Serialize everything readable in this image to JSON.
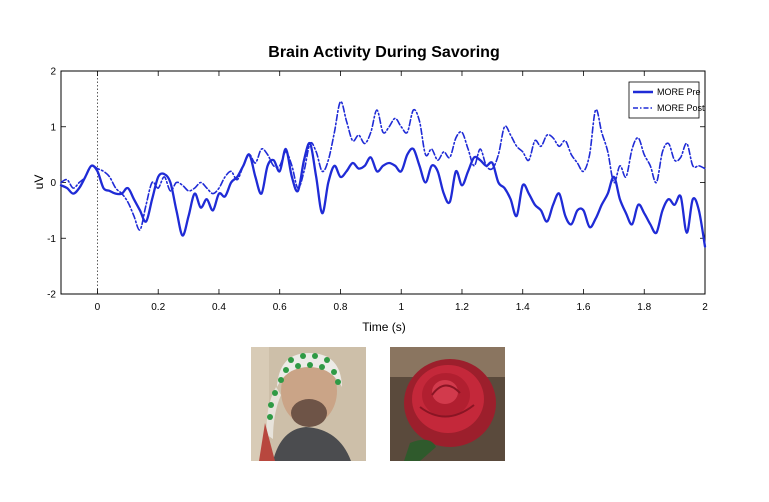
{
  "chart_data": {
    "type": "line",
    "title": "Brain Activity During Savoring",
    "xlabel": "Time (s)",
    "ylabel": "uV",
    "xlim": [
      -0.12,
      2.0
    ],
    "ylim": [
      -2,
      2
    ],
    "xticks": [
      "0",
      "0.2",
      "0.4",
      "0.6",
      "0.8",
      "1",
      "1.2",
      "1.4",
      "1.6",
      "1.8",
      "2"
    ],
    "yticks": [
      "2",
      "1",
      "0",
      "-1",
      "-2"
    ],
    "legend_position": "top-right",
    "stimulus_onset": 0,
    "grid": false,
    "color": "#1f2bd6",
    "x": [
      -0.12,
      -0.1,
      -0.08,
      -0.06,
      -0.04,
      -0.02,
      0.0,
      0.02,
      0.04,
      0.06,
      0.08,
      0.1,
      0.12,
      0.14,
      0.16,
      0.18,
      0.2,
      0.22,
      0.24,
      0.26,
      0.28,
      0.3,
      0.32,
      0.34,
      0.36,
      0.38,
      0.4,
      0.42,
      0.44,
      0.46,
      0.48,
      0.5,
      0.52,
      0.54,
      0.56,
      0.58,
      0.6,
      0.62,
      0.64,
      0.66,
      0.68,
      0.7,
      0.72,
      0.74,
      0.76,
      0.78,
      0.8,
      0.82,
      0.84,
      0.86,
      0.88,
      0.9,
      0.92,
      0.94,
      0.96,
      0.98,
      1.0,
      1.02,
      1.04,
      1.06,
      1.08,
      1.1,
      1.12,
      1.14,
      1.16,
      1.18,
      1.2,
      1.22,
      1.24,
      1.26,
      1.28,
      1.3,
      1.32,
      1.34,
      1.36,
      1.38,
      1.4,
      1.42,
      1.44,
      1.46,
      1.48,
      1.5,
      1.52,
      1.54,
      1.56,
      1.58,
      1.6,
      1.62,
      1.64,
      1.66,
      1.68,
      1.7,
      1.72,
      1.74,
      1.76,
      1.78,
      1.8,
      1.82,
      1.84,
      1.86,
      1.88,
      1.9,
      1.92,
      1.94,
      1.96,
      1.98,
      2.0
    ],
    "series": [
      {
        "name": "MORE Pre",
        "style": "solid",
        "values": [
          -0.05,
          -0.1,
          -0.2,
          -0.1,
          0.1,
          0.3,
          0.2,
          -0.1,
          -0.15,
          -0.2,
          -0.2,
          -0.1,
          -0.3,
          -0.5,
          -0.7,
          -0.3,
          0.1,
          0.15,
          0.0,
          -0.5,
          -0.95,
          -0.6,
          -0.2,
          -0.45,
          -0.3,
          -0.5,
          -0.2,
          -0.25,
          0.0,
          0.1,
          0.3,
          0.5,
          0.1,
          -0.2,
          0.3,
          0.4,
          0.2,
          0.6,
          0.1,
          -0.15,
          0.4,
          0.7,
          0.1,
          -0.55,
          0.0,
          0.3,
          0.1,
          0.2,
          0.35,
          0.25,
          0.3,
          0.45,
          0.2,
          0.3,
          0.35,
          0.3,
          0.2,
          0.5,
          0.6,
          0.3,
          0.0,
          0.3,
          0.2,
          -0.2,
          -0.35,
          0.2,
          -0.05,
          0.2,
          0.45,
          0.4,
          0.3,
          0.35,
          0.0,
          -0.1,
          -0.3,
          -0.6,
          -0.05,
          -0.2,
          -0.4,
          -0.5,
          -0.7,
          -0.4,
          -0.2,
          -0.6,
          -0.75,
          -0.5,
          -0.5,
          -0.8,
          -0.65,
          -0.4,
          -0.2,
          0.1,
          -0.3,
          -0.55,
          -0.75,
          -0.4,
          -0.55,
          -0.75,
          -0.9,
          -0.5,
          -0.3,
          -0.4,
          -0.25,
          -0.9,
          -0.3,
          -0.5,
          -1.15
        ]
      },
      {
        "name": "MORE Post",
        "style": "dashdot",
        "values": [
          0.0,
          0.05,
          -0.1,
          0.0,
          0.1,
          0.3,
          0.25,
          0.2,
          0.1,
          -0.1,
          -0.2,
          -0.35,
          -0.6,
          -0.85,
          -0.4,
          0.0,
          -0.1,
          0.1,
          -0.15,
          0.0,
          -0.05,
          -0.15,
          -0.1,
          0.0,
          -0.1,
          -0.2,
          -0.1,
          0.1,
          0.2,
          0.05,
          0.3,
          0.5,
          0.35,
          0.6,
          0.5,
          0.3,
          0.3,
          0.55,
          0.3,
          -0.1,
          0.2,
          0.7,
          0.55,
          0.2,
          0.4,
          0.9,
          1.45,
          1.1,
          0.75,
          0.85,
          0.7,
          0.9,
          1.3,
          0.9,
          1.0,
          1.15,
          1.0,
          0.9,
          1.3,
          1.1,
          0.5,
          0.6,
          0.4,
          0.55,
          0.45,
          0.8,
          0.9,
          0.6,
          0.3,
          0.6,
          0.3,
          0.25,
          0.5,
          1.0,
          0.85,
          0.65,
          0.55,
          0.4,
          0.75,
          0.65,
          0.85,
          0.8,
          0.65,
          0.75,
          0.5,
          0.35,
          0.2,
          0.5,
          1.3,
          0.9,
          0.55,
          0.0,
          0.3,
          0.1,
          0.6,
          0.8,
          0.5,
          0.3,
          0.0,
          0.55,
          0.7,
          0.4,
          0.45,
          0.7,
          0.3,
          0.3,
          0.25
        ]
      }
    ]
  },
  "images": {
    "eeg_photo": "Photo of a man wearing an EEG electrode cap",
    "rose_photo": "Photo of a red rose"
  }
}
